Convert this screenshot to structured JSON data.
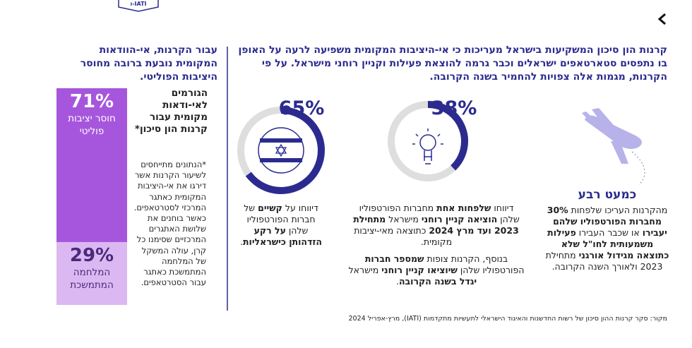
{
  "badge": "IATI-ו",
  "header": {
    "title": "קרנות הון סיכון המשקיעות בישראל מעריכות כי אי-היציבות המקומית משפיעה לרעה על האופן בו נתפסים סטארטאפים ישראלים וכבר גרמה להוצאת פעילות וקניין רוחני מישראל. על פי הקרנות, מגמות אלה צפויות להחמיר בשנה הקרובה.",
    "side_title": "עבור הקרנות, אי-הוודאות המקומית נובעת ברובה מחוסר היציבות הפוליטי."
  },
  "columns": [
    {
      "headline": "כמעט רבע",
      "paragraphs": [
        [
          {
            "text": "מהקרנות העריכו שלפחות "
          },
          {
            "text": "30% מחברות הפורטפוליו שלהם יעבירו",
            "bold": true
          },
          {
            "text": " או שכבר העבירו "
          },
          {
            "text": "פעילות משמעותית לחו\"ל שלא כתוצאה מגידול אורגני",
            "bold": true
          },
          {
            "text": " מתחילת 2023 ולאורך השנה הקרובה."
          }
        ]
      ]
    },
    {
      "stat": {
        "value": 38,
        "label": "38%"
      },
      "paragraphs": [
        [
          {
            "text": "דיווחו "
          },
          {
            "text": "שלפחות אחת",
            "bold": true
          },
          {
            "text": " מחברות הפורטפוליו שלהן "
          },
          {
            "text": "הוציאה קניין רוחני",
            "bold": true
          },
          {
            "text": " מישראל "
          },
          {
            "text": "מתחילת 2023 ועד מרץ 2024",
            "bold": true
          },
          {
            "text": " כתוצאה מאי-יציבות מקומית."
          }
        ],
        [
          {
            "text": "בנוסף, הקרנות צופות "
          },
          {
            "text": "שמספר חברות",
            "bold": true
          },
          {
            "text": " הפורטפוליו שלהן "
          },
          {
            "text": "שיוציאו קניין רוחני",
            "bold": true
          },
          {
            "text": " מישראל "
          },
          {
            "text": "יגדל בשנה הקרובה",
            "bold": true
          },
          {
            "text": "."
          }
        ]
      ]
    },
    {
      "stat": {
        "value": 65,
        "label": "65%"
      },
      "paragraphs": [
        [
          {
            "text": "דיווחו על "
          },
          {
            "text": "קשיים",
            "bold": true
          },
          {
            "text": " של חברות הפורטפוליו שלהן "
          },
          {
            "text": "על רקע הזדהותן כישראליות",
            "bold": true
          },
          {
            "text": "."
          }
        ]
      ]
    }
  ],
  "factors": {
    "title": "הגורמים לאי-ודאות מקומית עבור קרנות הון סיכון*",
    "note": "*הנתונים מתייחסים לשיעור הקרנות אשר דירגו את אי-היציבות המקומית כאתגר המרכזי לסטרטאפים. כאשר בוחנים את שלושת האתגרים המרכזיים שסימנו כל קרן, עולה המשקל של המלחמה המתמשכת כאתגר עבור הסטרטאפים.",
    "segments": [
      {
        "value": 71,
        "label": "71%",
        "name": "חוסר יציבות פוליטי",
        "color": "#a656dc",
        "text_color": "#ffffff"
      },
      {
        "value": 29,
        "label": "29%",
        "name": "המלחמה המתמשכת",
        "color": "#dcb8f2",
        "text_color": "#4a2a7a"
      }
    ]
  },
  "source": "מקור: סקר קרנות ההון סיכון של רשות החדשנות והאיגוד הישראלי לתעשיות מתקדמות (IATI), מרץ-אפריל 2024"
}
